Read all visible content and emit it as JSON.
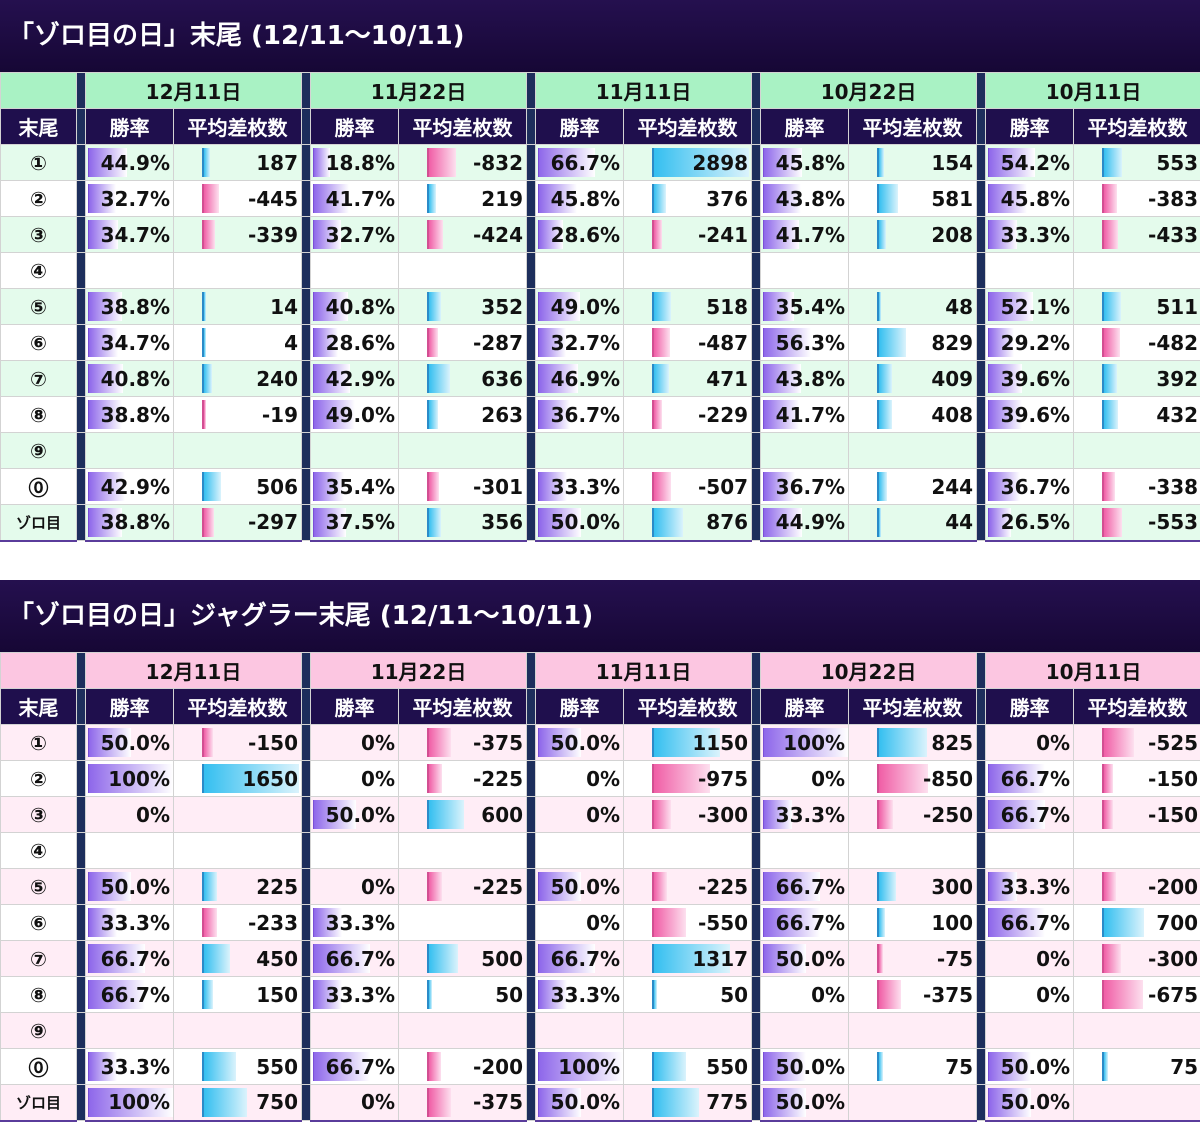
{
  "section1": {
    "title": "「ゾロ目の日」末尾 (12/11〜10/11)",
    "theme": {
      "date_bg": "#a9f2c4",
      "band_bg": "#e4fbec"
    },
    "dates": [
      "12月11日",
      "11月22日",
      "11月11日",
      "10月22日",
      "10月11日"
    ],
    "col_headers": {
      "label": "末尾",
      "rate": "勝率",
      "diff": "平均差枚数"
    },
    "rows": [
      {
        "label": "①",
        "cells": [
          {
            "rate": "44.9%",
            "diff": "187"
          },
          {
            "rate": "18.8%",
            "diff": "-832"
          },
          {
            "rate": "66.7%",
            "diff": "2898"
          },
          {
            "rate": "45.8%",
            "diff": "154"
          },
          {
            "rate": "54.2%",
            "diff": "553"
          }
        ]
      },
      {
        "label": "②",
        "cells": [
          {
            "rate": "32.7%",
            "diff": "-445"
          },
          {
            "rate": "41.7%",
            "diff": "219"
          },
          {
            "rate": "45.8%",
            "diff": "376"
          },
          {
            "rate": "43.8%",
            "diff": "581"
          },
          {
            "rate": "45.8%",
            "diff": "-383"
          }
        ]
      },
      {
        "label": "③",
        "cells": [
          {
            "rate": "34.7%",
            "diff": "-339"
          },
          {
            "rate": "32.7%",
            "diff": "-424"
          },
          {
            "rate": "28.6%",
            "diff": "-241"
          },
          {
            "rate": "41.7%",
            "diff": "208"
          },
          {
            "rate": "33.3%",
            "diff": "-433"
          }
        ]
      },
      {
        "label": "④",
        "cells": [
          {
            "rate": "",
            "diff": ""
          },
          {
            "rate": "",
            "diff": ""
          },
          {
            "rate": "",
            "diff": ""
          },
          {
            "rate": "",
            "diff": ""
          },
          {
            "rate": "",
            "diff": ""
          }
        ]
      },
      {
        "label": "⑤",
        "cells": [
          {
            "rate": "38.8%",
            "diff": "14"
          },
          {
            "rate": "40.8%",
            "diff": "352"
          },
          {
            "rate": "49.0%",
            "diff": "518"
          },
          {
            "rate": "35.4%",
            "diff": "48"
          },
          {
            "rate": "52.1%",
            "diff": "511"
          }
        ]
      },
      {
        "label": "⑥",
        "cells": [
          {
            "rate": "34.7%",
            "diff": "4"
          },
          {
            "rate": "28.6%",
            "diff": "-287"
          },
          {
            "rate": "32.7%",
            "diff": "-487"
          },
          {
            "rate": "56.3%",
            "diff": "829"
          },
          {
            "rate": "29.2%",
            "diff": "-482"
          }
        ]
      },
      {
        "label": "⑦",
        "cells": [
          {
            "rate": "40.8%",
            "diff": "240"
          },
          {
            "rate": "42.9%",
            "diff": "636"
          },
          {
            "rate": "46.9%",
            "diff": "471"
          },
          {
            "rate": "43.8%",
            "diff": "409"
          },
          {
            "rate": "39.6%",
            "diff": "392"
          }
        ]
      },
      {
        "label": "⑧",
        "cells": [
          {
            "rate": "38.8%",
            "diff": "-19"
          },
          {
            "rate": "49.0%",
            "diff": "263"
          },
          {
            "rate": "36.7%",
            "diff": "-229"
          },
          {
            "rate": "41.7%",
            "diff": "408"
          },
          {
            "rate": "39.6%",
            "diff": "432"
          }
        ]
      },
      {
        "label": "⑨",
        "cells": [
          {
            "rate": "",
            "diff": ""
          },
          {
            "rate": "",
            "diff": ""
          },
          {
            "rate": "",
            "diff": ""
          },
          {
            "rate": "",
            "diff": ""
          },
          {
            "rate": "",
            "diff": ""
          }
        ]
      },
      {
        "label": "⓪",
        "cells": [
          {
            "rate": "42.9%",
            "diff": "506"
          },
          {
            "rate": "35.4%",
            "diff": "-301"
          },
          {
            "rate": "33.3%",
            "diff": "-507"
          },
          {
            "rate": "36.7%",
            "diff": "244"
          },
          {
            "rate": "36.7%",
            "diff": "-338"
          }
        ]
      },
      {
        "label": "ゾロ目",
        "cells": [
          {
            "rate": "38.8%",
            "diff": "-297"
          },
          {
            "rate": "37.5%",
            "diff": "356"
          },
          {
            "rate": "50.0%",
            "diff": "876"
          },
          {
            "rate": "44.9%",
            "diff": "44"
          },
          {
            "rate": "26.5%",
            "diff": "-553"
          }
        ]
      }
    ]
  },
  "section2": {
    "title": "「ゾロ目の日」ジャグラー末尾 (12/11〜10/11)",
    "theme": {
      "date_bg": "#fcc6e1",
      "band_bg": "#ffedf6"
    },
    "dates": [
      "12月11日",
      "11月22日",
      "11月11日",
      "10月22日",
      "10月11日"
    ],
    "col_headers": {
      "label": "末尾",
      "rate": "勝率",
      "diff": "平均差枚数"
    },
    "rows": [
      {
        "label": "①",
        "cells": [
          {
            "rate": "50.0%",
            "diff": "-150"
          },
          {
            "rate": "0%",
            "diff": "-375"
          },
          {
            "rate": "50.0%",
            "diff": "1150"
          },
          {
            "rate": "100%",
            "diff": "825"
          },
          {
            "rate": "0%",
            "diff": "-525"
          }
        ]
      },
      {
        "label": "②",
        "cells": [
          {
            "rate": "100%",
            "diff": "1650"
          },
          {
            "rate": "0%",
            "diff": "-225"
          },
          {
            "rate": "0%",
            "diff": "-975"
          },
          {
            "rate": "0%",
            "diff": "-850"
          },
          {
            "rate": "66.7%",
            "diff": "-150"
          }
        ]
      },
      {
        "label": "③",
        "cells": [
          {
            "rate": "0%",
            "diff": ""
          },
          {
            "rate": "50.0%",
            "diff": "600"
          },
          {
            "rate": "0%",
            "diff": "-300"
          },
          {
            "rate": "33.3%",
            "diff": "-250"
          },
          {
            "rate": "66.7%",
            "diff": "-150"
          }
        ]
      },
      {
        "label": "④",
        "cells": [
          {
            "rate": "",
            "diff": ""
          },
          {
            "rate": "",
            "diff": ""
          },
          {
            "rate": "",
            "diff": ""
          },
          {
            "rate": "",
            "diff": ""
          },
          {
            "rate": "",
            "diff": ""
          }
        ]
      },
      {
        "label": "⑤",
        "cells": [
          {
            "rate": "50.0%",
            "diff": "225"
          },
          {
            "rate": "0%",
            "diff": "-225"
          },
          {
            "rate": "50.0%",
            "diff": "-225"
          },
          {
            "rate": "66.7%",
            "diff": "300"
          },
          {
            "rate": "33.3%",
            "diff": "-200"
          }
        ]
      },
      {
        "label": "⑥",
        "cells": [
          {
            "rate": "33.3%",
            "diff": "-233"
          },
          {
            "rate": "33.3%",
            "diff": ""
          },
          {
            "rate": "0%",
            "diff": "-550"
          },
          {
            "rate": "66.7%",
            "diff": "100"
          },
          {
            "rate": "66.7%",
            "diff": "700"
          }
        ]
      },
      {
        "label": "⑦",
        "cells": [
          {
            "rate": "66.7%",
            "diff": "450"
          },
          {
            "rate": "66.7%",
            "diff": "500"
          },
          {
            "rate": "66.7%",
            "diff": "1317"
          },
          {
            "rate": "50.0%",
            "diff": "-75"
          },
          {
            "rate": "0%",
            "diff": "-300"
          }
        ]
      },
      {
        "label": "⑧",
        "cells": [
          {
            "rate": "66.7%",
            "diff": "150"
          },
          {
            "rate": "33.3%",
            "diff": "50"
          },
          {
            "rate": "33.3%",
            "diff": "50"
          },
          {
            "rate": "0%",
            "diff": "-375"
          },
          {
            "rate": "0%",
            "diff": "-675"
          }
        ]
      },
      {
        "label": "⑨",
        "cells": [
          {
            "rate": "",
            "diff": ""
          },
          {
            "rate": "",
            "diff": ""
          },
          {
            "rate": "",
            "diff": ""
          },
          {
            "rate": "",
            "diff": ""
          },
          {
            "rate": "",
            "diff": ""
          }
        ]
      },
      {
        "label": "⓪",
        "cells": [
          {
            "rate": "33.3%",
            "diff": "550"
          },
          {
            "rate": "66.7%",
            "diff": "-200"
          },
          {
            "rate": "100%",
            "diff": "550"
          },
          {
            "rate": "50.0%",
            "diff": "75"
          },
          {
            "rate": "50.0%",
            "diff": "75"
          }
        ]
      },
      {
        "label": "ゾロ目",
        "cells": [
          {
            "rate": "100%",
            "diff": "750"
          },
          {
            "rate": "0%",
            "diff": "-375"
          },
          {
            "rate": "50.0%",
            "diff": "775"
          },
          {
            "rate": "50.0%",
            "diff": ""
          },
          {
            "rate": "50.0%",
            "diff": ""
          }
        ]
      }
    ]
  }
}
